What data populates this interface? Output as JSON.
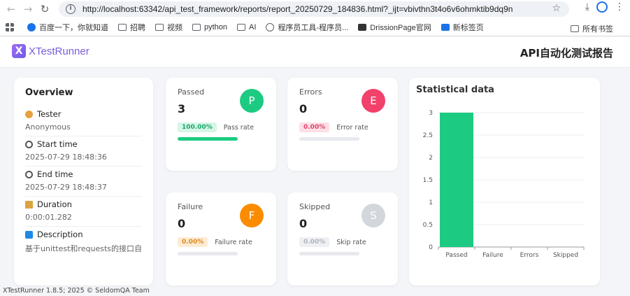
{
  "browser": {
    "url": "http://localhost:63342/api_test_framework/reports/report_20250729_184836.html?_ijt=vbivthn3t4o6v6ohmktib9dq9n",
    "bookmarks": [
      "百度一下，你就知道",
      "招聘",
      "视频",
      "python",
      "AI",
      "程序员工具-程序员...",
      "DrissionPage官网",
      "新标签页"
    ],
    "all_bookmarks": "所有书签"
  },
  "header": {
    "logo_letter": "X",
    "logo_text": "XTestRunner",
    "report_title": "API自动化测试报告"
  },
  "overview": {
    "title": "Overview",
    "items": [
      {
        "label": "Tester",
        "value": "Anonymous"
      },
      {
        "label": "Start time",
        "value": "2025-07-29 18:48:36"
      },
      {
        "label": "End time",
        "value": "2025-07-29 18:48:37"
      },
      {
        "label": "Duration",
        "value": "0:00:01.282"
      },
      {
        "label": "Description",
        "value": "基于unittest和requests的接口自动化测试"
      }
    ]
  },
  "stats": {
    "passed": {
      "label": "Passed",
      "count": "3",
      "letter": "P",
      "rate": "100.00%",
      "rate_label": "Pass rate",
      "progress": 1.0
    },
    "errors": {
      "label": "Errors",
      "count": "0",
      "letter": "E",
      "rate": "0.00%",
      "rate_label": "Error rate",
      "progress": 0
    },
    "failure": {
      "label": "Failure",
      "count": "0",
      "letter": "F",
      "rate": "0.00%",
      "rate_label": "Failure rate",
      "progress": 0
    },
    "skipped": {
      "label": "Skipped",
      "count": "0",
      "letter": "S",
      "rate": "0.00%",
      "rate_label": "Skip rate",
      "progress": 0
    }
  },
  "colors": {
    "passed": "#1ccb81",
    "errors": "#f2416b",
    "failure": "#fb8c00",
    "skipped": "#d3d6dd"
  },
  "chart_data": {
    "type": "bar",
    "title": "Statistical data",
    "categories": [
      "Passed",
      "Failure",
      "Errors",
      "Skipped"
    ],
    "values": [
      3,
      0,
      0,
      0
    ],
    "ylim": [
      0,
      3
    ],
    "yticks": [
      "0",
      "0.5",
      "1",
      "1.5",
      "2",
      "2.5",
      "3"
    ],
    "bar_color": "#1ccb81",
    "grid": true
  },
  "footer": "XTestRunner 1.8.5; 2025 © SeldomQA Team"
}
